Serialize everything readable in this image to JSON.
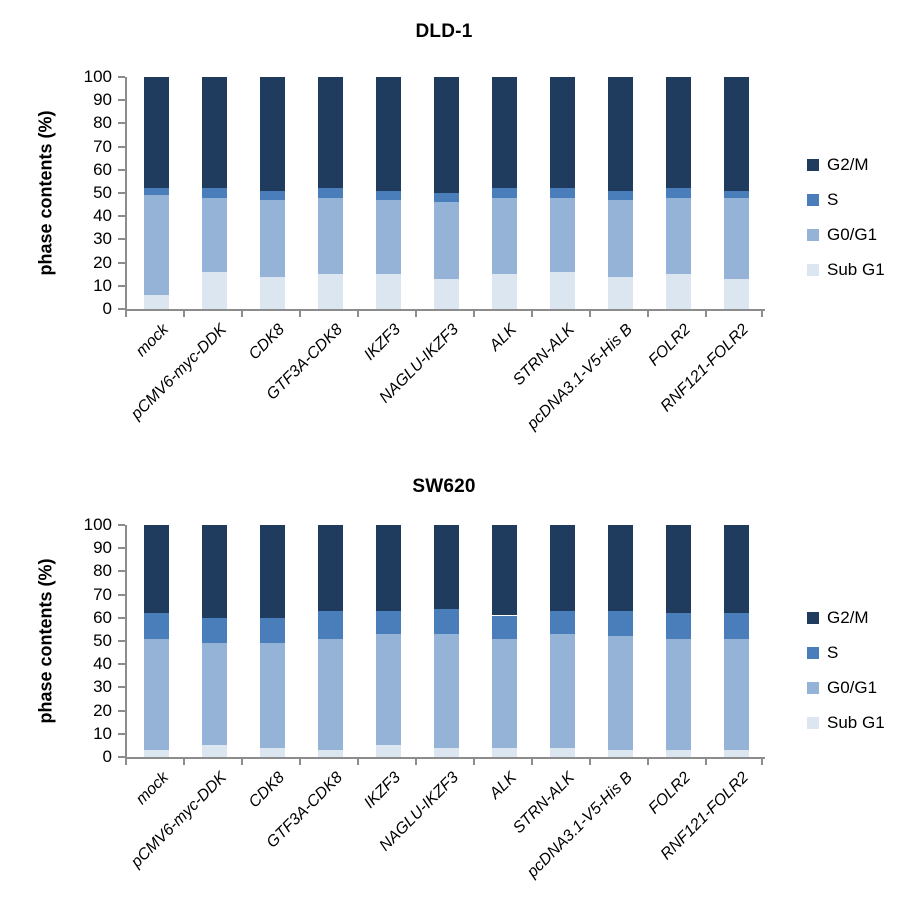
{
  "colors": {
    "g2m": "#1F3C5F",
    "s": "#4A7EBB",
    "g0g1": "#95B3D7",
    "subg1": "#DCE6F1",
    "axis": "#8C8C8C"
  },
  "chart_data": [
    {
      "type": "bar",
      "stacked": true,
      "title": "DLD-1",
      "xlabel": "",
      "ylabel": "phase contents (%)",
      "ylim": [
        0,
        100
      ],
      "yticks": [
        0,
        10,
        20,
        30,
        40,
        50,
        60,
        70,
        80,
        90,
        100
      ],
      "grid": false,
      "legend_position": "right",
      "legend_order_top_to_bottom": [
        "G2/M",
        "S",
        "G0/G1",
        "Sub G1"
      ],
      "categories": [
        "mock",
        "pCMV6-myc-DDK",
        "CDK8",
        "GTF3A-CDK8",
        "IKZF3",
        "NAGLU-IKZF3",
        "ALK",
        "STRN-ALK",
        "pcDNA3.1-V5-His B",
        "FOLR2",
        "RNF121-FOLR2"
      ],
      "series": [
        {
          "name": "Sub G1",
          "color": "#DCE6F1",
          "values": [
            6,
            16,
            14,
            15,
            15,
            13,
            15,
            16,
            14,
            15,
            13
          ]
        },
        {
          "name": "G0/G1",
          "color": "#95B3D7",
          "values": [
            43,
            32,
            33,
            33,
            32,
            33,
            33,
            32,
            33,
            33,
            35
          ]
        },
        {
          "name": "S",
          "color": "#4A7EBB",
          "values": [
            3,
            4,
            4,
            4,
            4,
            4,
            4,
            4,
            4,
            4,
            3
          ]
        },
        {
          "name": "G2/M",
          "color": "#1F3C5F",
          "values": [
            48,
            48,
            49,
            48,
            49,
            50,
            48,
            48,
            49,
            48,
            49
          ]
        }
      ]
    },
    {
      "type": "bar",
      "stacked": true,
      "title": "SW620",
      "xlabel": "",
      "ylabel": "phase contents (%)",
      "ylim": [
        0,
        100
      ],
      "yticks": [
        0,
        10,
        20,
        30,
        40,
        50,
        60,
        70,
        80,
        90,
        100
      ],
      "grid": false,
      "legend_position": "right",
      "legend_order_top_to_bottom": [
        "G2/M",
        "S",
        "G0/G1",
        "Sub G1"
      ],
      "categories": [
        "mock",
        "pCMV6-myc-DDK",
        "CDK8",
        "GTF3A-CDK8",
        "IKZF3",
        "NAGLU-IKZF3",
        "ALK",
        "STRN-ALK",
        "pcDNA3.1-V5-His B",
        "FOLR2",
        "RNF121-FOLR2"
      ],
      "series": [
        {
          "name": "Sub G1",
          "color": "#DCE6F1",
          "values": [
            3,
            5,
            4,
            3,
            5,
            4,
            4,
            4,
            3,
            3,
            3
          ]
        },
        {
          "name": "G0/G1",
          "color": "#95B3D7",
          "values": [
            48,
            44,
            45,
            48,
            48,
            49,
            47,
            49,
            49,
            48,
            48
          ]
        },
        {
          "name": "S",
          "color": "#4A7EBB",
          "values": [
            11,
            11,
            11,
            12,
            10,
            11,
            10,
            10,
            11,
            11,
            11
          ]
        },
        {
          "name": "G2/M",
          "color": "#1F3C5F",
          "values": [
            38,
            40,
            40,
            37,
            37,
            36,
            39,
            37,
            37,
            38,
            38
          ]
        }
      ]
    }
  ]
}
